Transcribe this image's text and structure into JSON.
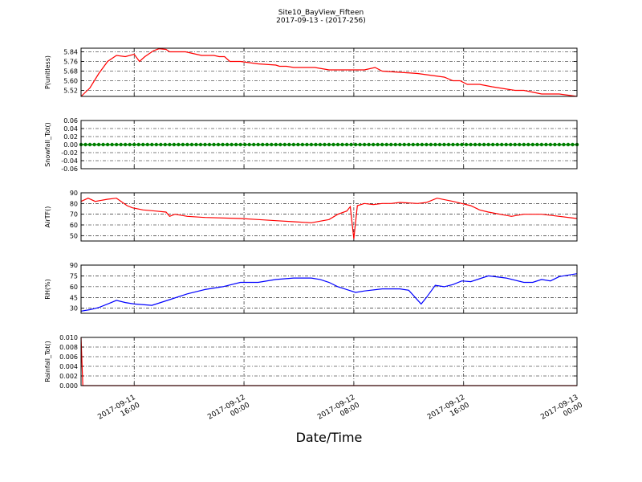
{
  "figure": {
    "title": "Site10_BayView_Fifteen",
    "subtitle": "2017-09-13 - (2017-256)",
    "xlabel": "Date/Time"
  },
  "chart_data": [
    {
      "type": "line",
      "ylabel": "P(unitless)",
      "ylim": [
        5.47,
        5.87
      ],
      "yticks": [
        "5.52",
        "5.60",
        "5.68",
        "5.76",
        "5.84"
      ],
      "ytick_values": [
        5.52,
        5.6,
        5.68,
        5.76,
        5.84
      ],
      "grid": true,
      "series": [
        {
          "color": "#ff0000",
          "x": [
            0,
            0.5,
            1,
            1.5,
            2,
            2.5,
            3,
            3.3,
            3.6,
            4.1,
            4.4,
            4.8,
            5,
            5.9,
            6.2,
            6.8,
            7.5,
            7.8,
            8.1,
            8.4,
            9,
            10,
            11,
            11.2,
            11.6,
            12,
            13.2,
            14,
            16,
            16.6,
            17,
            19,
            20.5,
            21,
            21.4,
            21.8,
            22.5,
            23.2,
            24.5,
            25,
            26,
            27,
            28
          ],
          "y": [
            5.47,
            5.54,
            5.66,
            5.76,
            5.81,
            5.8,
            5.82,
            5.76,
            5.8,
            5.85,
            5.865,
            5.86,
            5.84,
            5.84,
            5.83,
            5.81,
            5.81,
            5.8,
            5.8,
            5.76,
            5.76,
            5.74,
            5.73,
            5.72,
            5.72,
            5.71,
            5.71,
            5.69,
            5.69,
            5.71,
            5.68,
            5.66,
            5.63,
            5.6,
            5.6,
            5.57,
            5.57,
            5.55,
            5.52,
            5.52,
            5.49,
            5.49,
            5.47
          ]
        }
      ]
    },
    {
      "type": "scatter",
      "ylabel": "Snowfall_Tot()",
      "ylim": [
        -0.06,
        0.06
      ],
      "yticks": [
        "0.06",
        "0.04",
        "0.02",
        "0.00",
        "-0.02",
        "-0.04",
        "-0.06"
      ],
      "ytick_values": [
        0.06,
        0.04,
        0.02,
        0.0,
        -0.02,
        -0.04,
        -0.06
      ],
      "grid": true,
      "series": [
        {
          "color": "#008000",
          "x_start": 0,
          "x_end": 28,
          "x_step": 0.25,
          "y_constant": 0.0
        }
      ]
    },
    {
      "type": "line",
      "ylabel": "AirTF()",
      "ylim": [
        45,
        90
      ],
      "yticks": [
        "90",
        "80",
        "70",
        "60",
        "50"
      ],
      "ytick_values": [
        90,
        80,
        70,
        60,
        50
      ],
      "grid": true,
      "series": [
        {
          "color": "#ff0000",
          "x": [
            0,
            0.4,
            0.8,
            1.5,
            2,
            2.6,
            2.9,
            3.5,
            4.2,
            4.8,
            5,
            5.3,
            6,
            7,
            9,
            10,
            11,
            12,
            13,
            14,
            14.5,
            15,
            15.2,
            15.4,
            15.6,
            16,
            16.5,
            17,
            17.5,
            18,
            19,
            19.5,
            20.1,
            21,
            22,
            22.5,
            23,
            24.3,
            25,
            26,
            27,
            28
          ],
          "y": [
            82,
            85,
            82,
            84,
            85,
            78,
            76,
            74,
            73,
            72,
            68,
            70,
            68,
            67,
            66,
            65,
            64,
            63,
            62,
            65,
            70,
            73,
            77,
            47,
            78,
            80,
            79,
            80,
            80,
            81,
            80,
            81,
            85,
            82,
            78,
            74,
            72,
            68,
            70,
            70,
            68,
            66
          ]
        }
      ]
    },
    {
      "type": "line",
      "ylabel": "RH(%)",
      "ylim": [
        23,
        90
      ],
      "yticks": [
        "90",
        "75",
        "60",
        "45",
        "30"
      ],
      "ytick_values": [
        90,
        75,
        60,
        45,
        30
      ],
      "grid": true,
      "series": [
        {
          "color": "#0000ff",
          "x": [
            0,
            0.5,
            1,
            1.5,
            2,
            2.5,
            3,
            4,
            5,
            6,
            7,
            8,
            9,
            10,
            11,
            12,
            13,
            13.5,
            14,
            14.5,
            15,
            15.5,
            16,
            17,
            18,
            18.5,
            19.2,
            19.5,
            20,
            20.5,
            21,
            21.5,
            22,
            23,
            24,
            25,
            25.5,
            26,
            26.5,
            27,
            28
          ],
          "y": [
            26,
            28,
            31,
            36,
            41,
            38,
            36,
            34,
            42,
            50,
            56,
            60,
            66,
            66,
            70,
            72,
            72,
            70,
            66,
            60,
            56,
            52,
            54,
            57,
            57,
            55,
            36,
            45,
            62,
            60,
            63,
            68,
            67,
            75,
            72,
            66,
            66,
            70,
            68,
            74,
            78
          ]
        }
      ]
    },
    {
      "type": "line",
      "ylabel": "Rainfall_Tot()",
      "ylim": [
        0,
        0.01
      ],
      "yticks": [
        "0.010",
        "0.008",
        "0.006",
        "0.004",
        "0.002",
        "0.000"
      ],
      "ytick_values": [
        0.01,
        0.008,
        0.006,
        0.004,
        0.002,
        0.0
      ],
      "grid": true,
      "series": [
        {
          "color": "#ff0000",
          "x": [
            0,
            0.1,
            0.2,
            28
          ],
          "y": [
            0.01,
            0.0,
            0.0,
            0.0
          ]
        }
      ]
    }
  ],
  "x_axis": {
    "xlim": [
      0,
      28
    ],
    "tick_x": [
      3,
      9.2,
      15.4,
      21.6,
      28
    ],
    "tick_labels": [
      [
        "2017-09-11",
        "16:00"
      ],
      [
        "2017-09-12",
        "00:00"
      ],
      [
        "2017-09-12",
        "08:00"
      ],
      [
        "2017-09-12",
        "16:00"
      ],
      [
        "2017-09-13",
        "00:00"
      ]
    ]
  }
}
